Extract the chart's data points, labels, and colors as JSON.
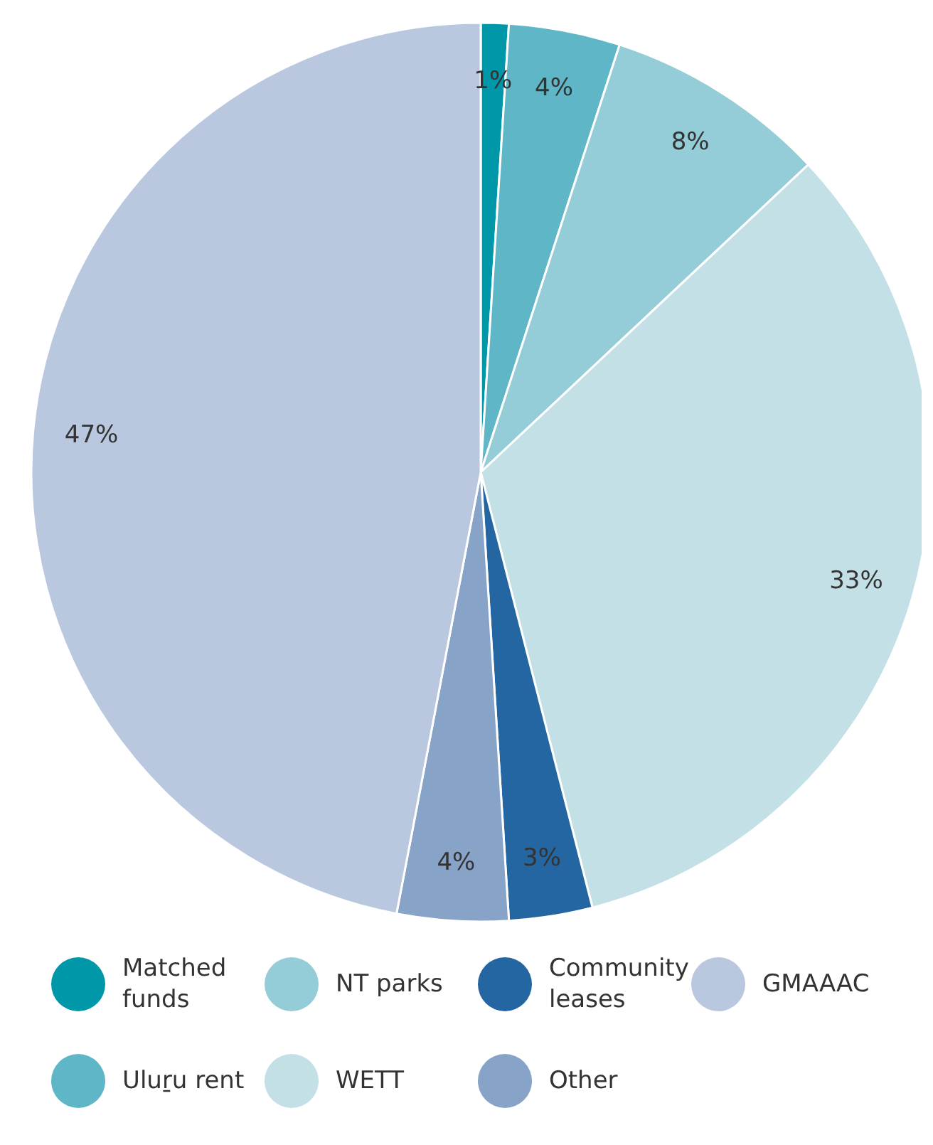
{
  "chart_data": {
    "type": "pie",
    "categories": [
      "Matched funds",
      "Uluṟu rent",
      "NT parks",
      "WETT",
      "Community leases",
      "Other",
      "GMAAAC"
    ],
    "values": [
      1,
      4,
      8,
      33,
      3,
      4,
      47
    ],
    "value_labels": [
      "1%",
      "4%",
      "8%",
      "33%",
      "3%",
      "4%",
      "47%"
    ],
    "colors": [
      "#0097a9",
      "#5fb6c7",
      "#94cdd8",
      "#c3e0e6",
      "#2366a1",
      "#87a3c8",
      "#b9c7df"
    ],
    "legend": "bottom"
  }
}
